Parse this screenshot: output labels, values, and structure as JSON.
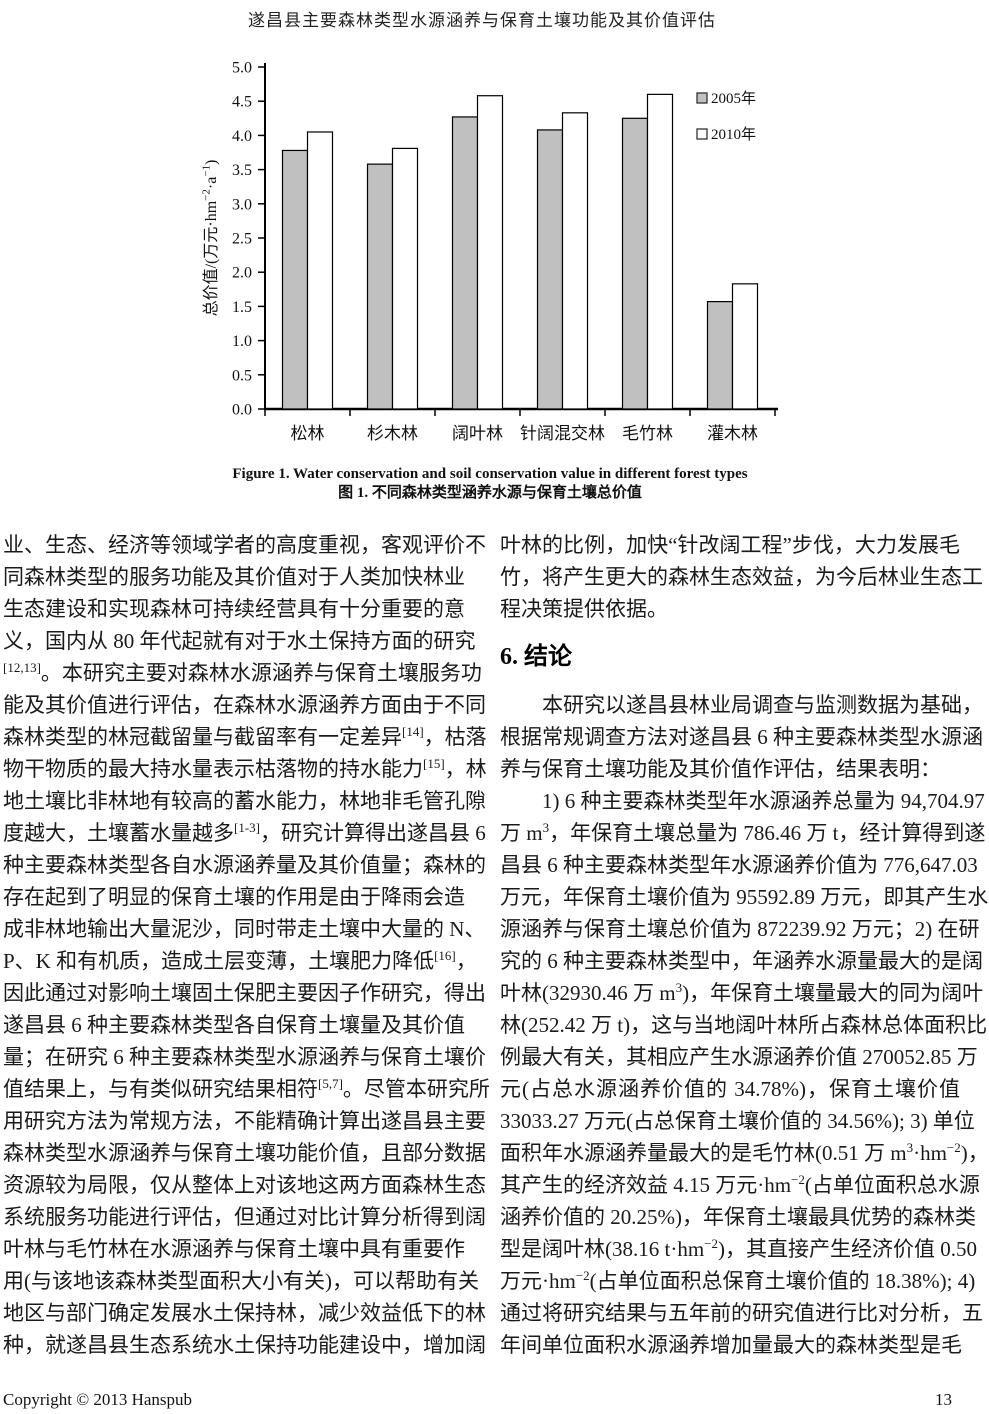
{
  "page": {
    "header_title": "遂昌县主要森林类型水源涵养与保育土壤功能及其价值评估",
    "footer": {
      "copyright": "Copyright © 2013 Hanspub",
      "page_number": "13"
    }
  },
  "figure": {
    "caption_en": "Figure 1. Water conservation and soil conservation value in different forest types",
    "caption_zh": "图 1. 不同森林类型涵养水源与保育土壤总价值"
  },
  "chart_data": {
    "type": "bar",
    "categories": [
      "松林",
      "杉木林",
      "阔叶林",
      "针阔混交林",
      "毛竹林",
      "灌木林"
    ],
    "series": [
      {
        "name": "2005年",
        "values": [
          3.78,
          3.58,
          4.27,
          4.08,
          4.25,
          1.57
        ],
        "fill": "#c0c0c0"
      },
      {
        "name": "2010年",
        "values": [
          4.05,
          3.81,
          4.58,
          4.33,
          4.6,
          1.83
        ],
        "fill": "#ffffff"
      }
    ],
    "title": "",
    "xlabel": "",
    "ylabel": "总价值/(万元·hm⁻²·a⁻¹)",
    "ylabel_segments": [
      "总价值/(万元·hm",
      {
        "sup": "−2"
      },
      "·a",
      {
        "sup": "−1"
      },
      ")"
    ],
    "ylim": [
      0,
      5
    ],
    "ytick_step": 0.5,
    "grid": false,
    "legend_position": "top-right",
    "axis_color": "#000000",
    "bar_border_color": "#000000"
  },
  "body": {
    "left_lines": [
      {
        "t": [
          "业、生态、经济等领域学者的高度重视，客观评价不"
        ]
      },
      {
        "t": [
          "同森林类型的服务功能及其价值对于人类加快林业"
        ]
      },
      {
        "t": [
          "生态建设和实现森林可持续经营具有十分重要的意"
        ]
      },
      {
        "t": [
          "义，国内从 80 年代起就有对于水土保持方面的研究"
        ]
      },
      {
        "t": [
          {
            "sup": "[12,13]"
          },
          "。本研究主要对森林水源涵养与保育土壤服务功"
        ]
      },
      {
        "t": [
          "能及其价值进行评估，在森林水源涵养方面由于不同"
        ]
      },
      {
        "t": [
          "森林类型的林冠截留量与截留率有一定差异",
          {
            "sup": "[14]"
          },
          "，枯落"
        ]
      },
      {
        "t": [
          "物干物质的最大持水量表示枯落物的持水能力",
          {
            "sup": "[15]"
          },
          "，林"
        ]
      },
      {
        "t": [
          "地土壤比非林地有较高的蓄水能力，林地非毛管孔隙"
        ]
      },
      {
        "t": [
          "度越大，土壤蓄水量越多",
          {
            "sup": "[1-3]"
          },
          "，研究计算得出遂昌县 6"
        ]
      },
      {
        "t": [
          "种主要森林类型各自水源涵养量及其价值量；森林的"
        ]
      },
      {
        "t": [
          "存在起到了明显的保育土壤的作用是由于降雨会造"
        ]
      },
      {
        "t": [
          "成非林地输出大量泥沙，同时带走土壤中大量的 N、"
        ]
      },
      {
        "t": [
          "P、K 和有机质，造成土层变薄，土壤肥力降低",
          {
            "sup": "[16]"
          },
          "，"
        ]
      },
      {
        "t": [
          "因此通过对影响土壤固土保肥主要因子作研究，得出"
        ]
      },
      {
        "t": [
          "遂昌县 6 种主要森林类型各自保育土壤量及其价值"
        ]
      },
      {
        "t": [
          "量；在研究 6 种主要森林类型水源涵养与保育土壤价"
        ]
      },
      {
        "t": [
          "值结果上，与有类似研究结果相符",
          {
            "sup": "[5,7]"
          },
          "。尽管本研究所"
        ]
      },
      {
        "t": [
          "用研究方法为常规方法，不能精确计算出遂昌县主要"
        ]
      },
      {
        "t": [
          "森林类型水源涵养与保育土壤功能价值，且部分数据"
        ]
      },
      {
        "t": [
          "资源较为局限，仅从整体上对该地这两方面森林生态"
        ]
      },
      {
        "t": [
          "系统服务功能进行评估，但通过对比计算分析得到阔"
        ]
      },
      {
        "t": [
          "叶林与毛竹林在水源涵养与保育土壤中具有重要作"
        ]
      },
      {
        "t": [
          "用(与该地该森林类型面积大小有关)，可以帮助有关"
        ]
      },
      {
        "t": [
          "地区与部门确定发展水土保持林，减少效益低下的林"
        ]
      },
      {
        "t": [
          "种，就遂昌县生态系统水土保持功能建设中，增加阔"
        ]
      }
    ],
    "right_blocks": [
      {
        "type": "lines",
        "lines": [
          {
            "t": [
              "叶林的比例，加快“针改阔工程”步伐，大力发展毛"
            ]
          },
          {
            "t": [
              "竹，将产生更大的森林生态效益，为今后林业生态工"
            ]
          },
          {
            "t": [
              "程决策提供依据。"
            ],
            "short": true
          }
        ]
      },
      {
        "type": "heading",
        "text": "6. 结论"
      },
      {
        "type": "lines",
        "lines": [
          {
            "t": [
              "本研究以遂昌县林业局调查与监测数据为基础，"
            ],
            "indent": true
          },
          {
            "t": [
              "根据常规调查方法对遂昌县 6 种主要森林类型水源涵"
            ]
          },
          {
            "t": [
              "养与保育土壤功能及其价值作评估，结果表明："
            ],
            "short": true
          },
          {
            "t": [
              "1) 6 种主要森林类型年水源涵养总量为 94,704.97"
            ],
            "indent": true
          },
          {
            "t": [
              "万 m",
              {
                "sup": "3"
              },
              "，年保育土壤总量为 786.46 万 t，经计算得到遂"
            ]
          },
          {
            "t": [
              "昌县 6 种主要森林类型年水源涵养价值为 776,647.03"
            ]
          },
          {
            "t": [
              "万元，年保育土壤价值为 95592.89 万元，即其产生水"
            ]
          },
          {
            "t": [
              "源涵养与保育土壤总价值为 872239.92 万元；2) 在研"
            ]
          },
          {
            "t": [
              "究的 6 种主要森林类型中，年涵养水源量最大的是阔"
            ]
          },
          {
            "t": [
              "叶林(32930.46 万 m",
              {
                "sup": "3"
              },
              ")，年保育土壤量最大的同为阔叶"
            ]
          },
          {
            "t": [
              "林(252.42 万 t)，这与当地阔叶林所占森林总体面积比"
            ]
          },
          {
            "t": [
              "例最大有关，其相应产生水源涵养价值 270052.85 万"
            ]
          },
          {
            "t": [
              "元(占总水源涵养价值的 34.78%)，保育土壤价值"
            ]
          },
          {
            "t": [
              "33033.27 万元(占总保育土壤价值的 34.56%); 3) 单位"
            ]
          },
          {
            "t": [
              "面积年水源涵养量最大的是毛竹林(0.51 万 m",
              {
                "sup": "3"
              },
              "·hm",
              {
                "sup": "−2"
              },
              ")，"
            ]
          },
          {
            "t": [
              "其产生的经济效益 4.15 万元·hm",
              {
                "sup": "−2"
              },
              "(占单位面积总水源"
            ]
          },
          {
            "t": [
              "涵养价值的 20.25%)，年保育土壤最具优势的森林类"
            ]
          },
          {
            "t": [
              "型是阔叶林(38.16 t·hm",
              {
                "sup": "−2"
              },
              ")，其直接产生经济价值 0.50"
            ]
          },
          {
            "t": [
              "万元·hm",
              {
                "sup": "−2"
              },
              "(占单位面积总保育土壤价值的 18.38%); 4)"
            ]
          },
          {
            "t": [
              "通过将研究结果与五年前的研究值进行比对分析，五"
            ]
          },
          {
            "t": [
              "年间单位面积水源涵养增加量最大的森林类型是毛"
            ]
          }
        ]
      }
    ]
  }
}
